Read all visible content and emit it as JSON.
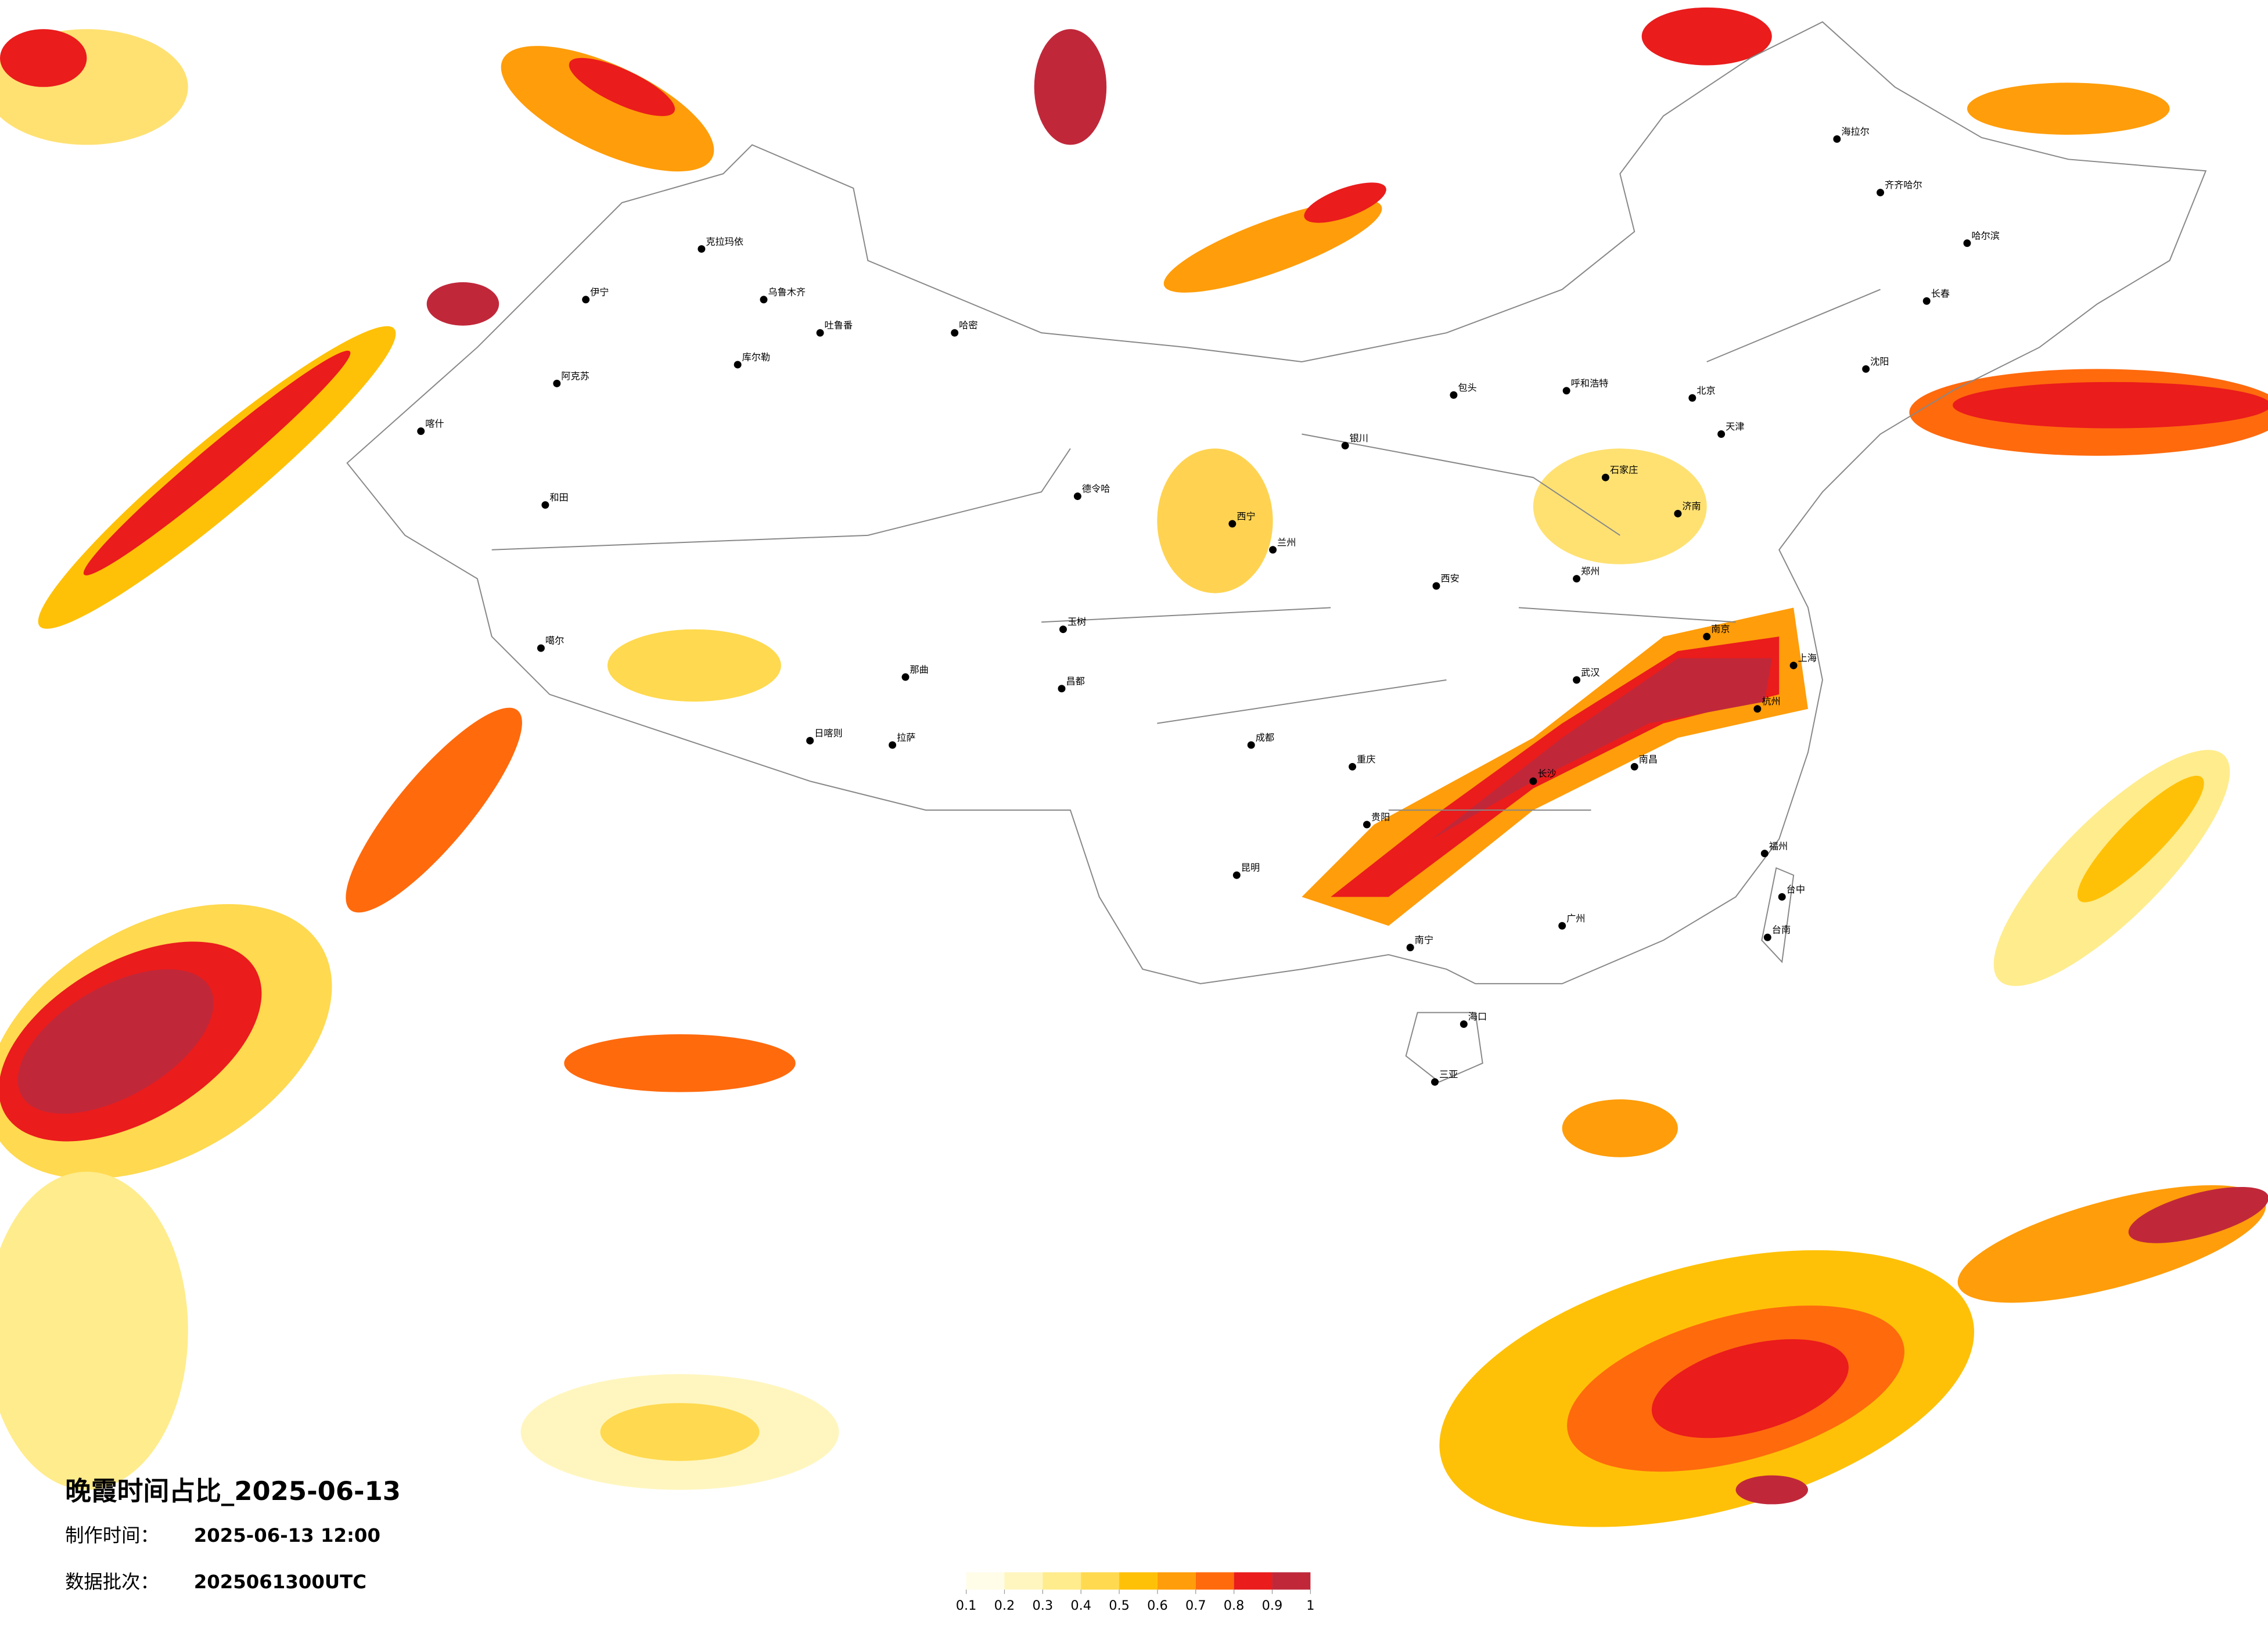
{
  "title": "晚霞时间占比_2025-06-13",
  "made_time": {
    "label": "制作时间：",
    "value": "2025-06-13 12:00"
  },
  "batch": {
    "label": "数据批次：",
    "value": "2025061300UTC"
  },
  "legend": {
    "ticks": [
      0.1,
      0.2,
      0.3,
      0.4,
      0.5,
      0.6,
      0.7,
      0.8,
      0.9,
      1
    ],
    "colors": [
      "#fffce8",
      "#fff6bf",
      "#ffec8c",
      "#ffd94f",
      "#ffc107",
      "#ff9d0a",
      "#ff6a0d",
      "#ea1c1c",
      "#c0283a"
    ]
  },
  "cities": [
    "克拉玛依",
    "乌鲁木齐",
    "伊宁",
    "吐鲁番",
    "哈密",
    "库尔勒",
    "阿克苏",
    "喀什",
    "和田",
    "噶尔",
    "日喀则",
    "拉萨",
    "那曲",
    "昌都",
    "玉树",
    "德令哈",
    "西宁",
    "兰州",
    "银川",
    "海拉尔",
    "齐齐哈尔",
    "哈尔滨",
    "长春",
    "沈阳",
    "呼和浩特",
    "包头",
    "北京",
    "天津",
    "石家庄",
    "济南",
    "郑州",
    "西安",
    "成都",
    "重庆",
    "武汉",
    "南京",
    "上海",
    "杭州",
    "长沙",
    "南昌",
    "福州",
    "广州",
    "南宁",
    "昆明",
    "贵阳",
    "海口",
    "三亚",
    "台中",
    "台南"
  ]
}
